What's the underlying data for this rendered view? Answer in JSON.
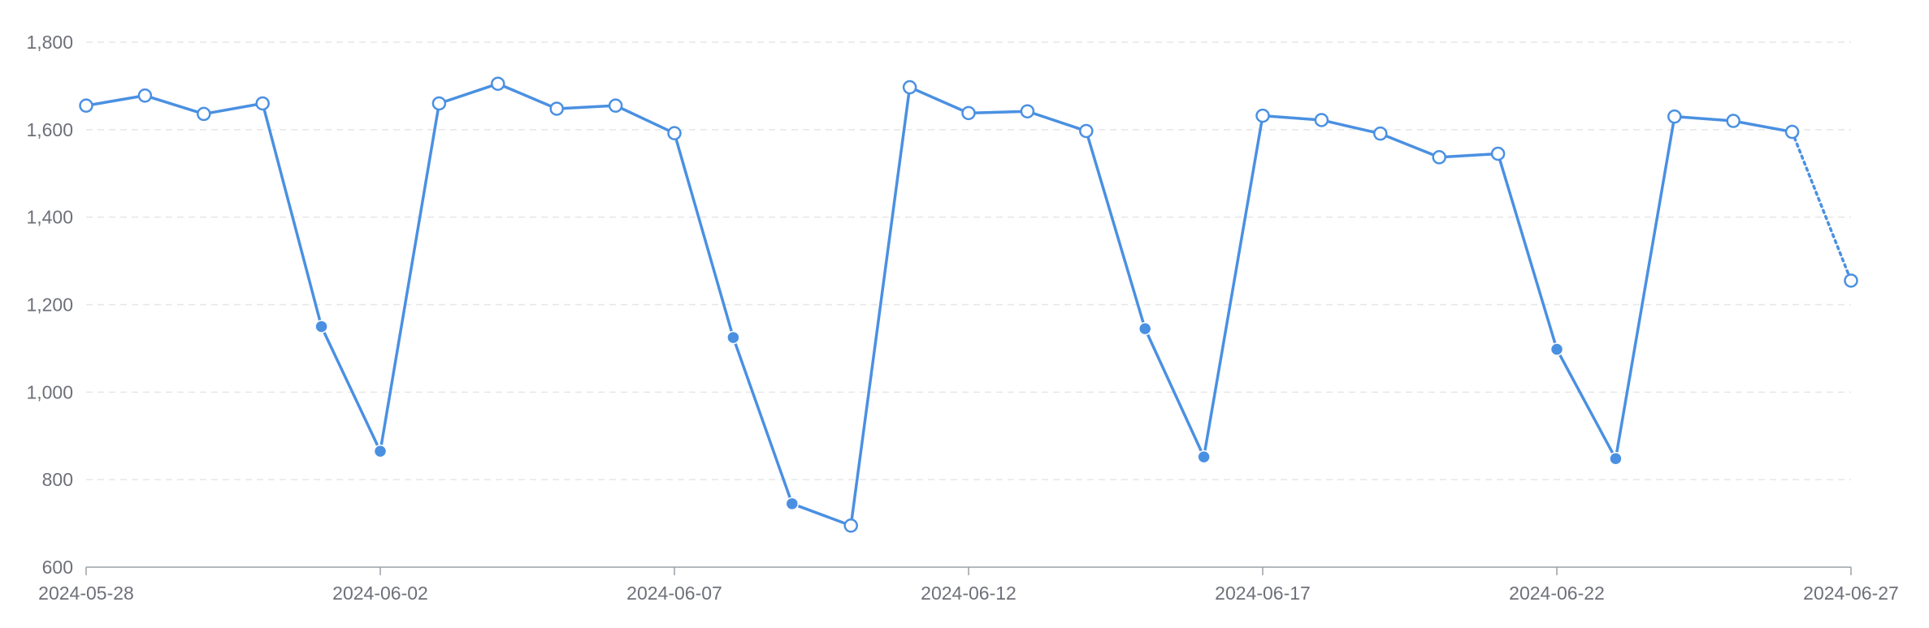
{
  "chart_data": {
    "type": "line",
    "title": "",
    "xlabel": "",
    "ylabel": "",
    "ylim": [
      600,
      1800
    ],
    "yticks": [
      600,
      800,
      1000,
      1200,
      1400,
      1600,
      1800
    ],
    "ytick_labels": [
      "600",
      "800",
      "1,000",
      "1,200",
      "1,400",
      "1,600",
      "1,800"
    ],
    "xtick_labels": [
      "2024-05-28",
      "2024-06-02",
      "2024-06-07",
      "2024-06-12",
      "2024-06-17",
      "2024-06-22",
      "2024-06-27"
    ],
    "grid": {
      "horizontal": true,
      "style": "dashed"
    },
    "colors": {
      "series": "#4a90e2",
      "grid": "#e6e6e6",
      "axis": "#9aa0a6",
      "text": "#6e7079"
    },
    "series": [
      {
        "x": [
          "2024-05-28",
          "2024-05-29",
          "2024-05-30",
          "2024-05-31",
          "2024-06-01",
          "2024-06-02",
          "2024-06-03",
          "2024-06-04",
          "2024-06-05",
          "2024-06-06",
          "2024-06-07",
          "2024-06-08",
          "2024-06-09",
          "2024-06-10",
          "2024-06-11",
          "2024-06-12",
          "2024-06-13",
          "2024-06-14",
          "2024-06-15",
          "2024-06-16",
          "2024-06-17",
          "2024-06-18",
          "2024-06-19",
          "2024-06-20",
          "2024-06-21",
          "2024-06-22",
          "2024-06-23",
          "2024-06-24",
          "2024-06-25",
          "2024-06-26",
          "2024-06-27"
        ],
        "values": [
          1655,
          1678,
          1636,
          1660,
          1150,
          865,
          1660,
          1705,
          1648,
          1655,
          1592,
          1125,
          745,
          695,
          1697,
          1638,
          1642,
          1597,
          1145,
          852,
          1632,
          1622,
          1591,
          1537,
          1545,
          1098,
          848,
          1630,
          1620,
          1595,
          1255
        ],
        "filled_markers": [
          false,
          false,
          false,
          false,
          true,
          true,
          false,
          false,
          false,
          false,
          false,
          true,
          true,
          false,
          false,
          false,
          false,
          false,
          true,
          true,
          false,
          false,
          false,
          false,
          false,
          true,
          true,
          false,
          false,
          false,
          false
        ],
        "dotted_last_segment": true
      }
    ]
  }
}
